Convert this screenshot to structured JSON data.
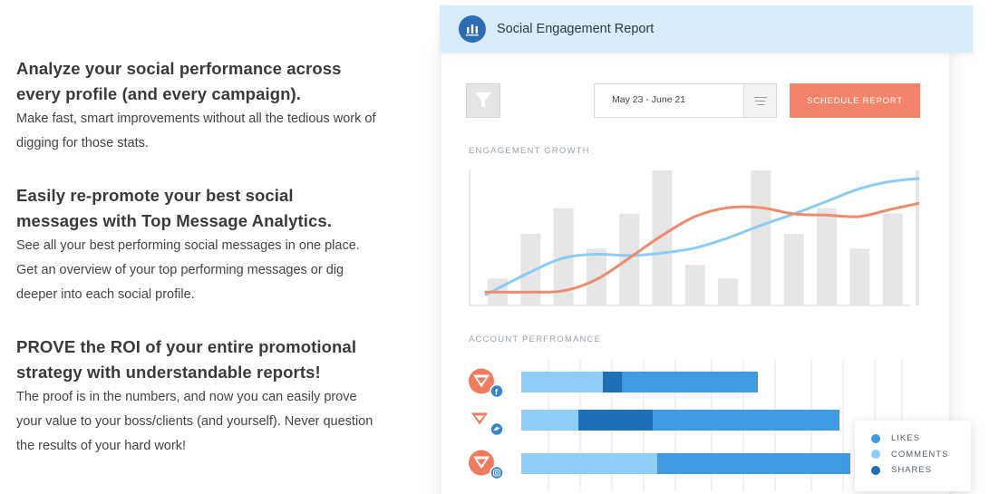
{
  "features": [
    {
      "heading": "Analyze your social performance across every profile (and every campaign).",
      "body": "Make fast, smart improvements without all the tedious work of digging for those stats."
    },
    {
      "heading": "Easily re-promote your best social messages with Top Message Analytics.",
      "body": "See all your best performing social messages in one place. Get an overview of your top performing messages or dig deeper into each social profile."
    },
    {
      "heading": "PROVE the ROI of your entire promotional strategy with understandable reports!",
      "body": "The proof is in the numbers, and now you can easily prove your value to your boss/clients (and yourself). Never question the results of your hard work!"
    }
  ],
  "report": {
    "title": "Social Engagement Report",
    "date_range": "May 23 - June 21",
    "schedule_label": "SCHEDULE REPORT",
    "growth_label": "ENGAGEMENT GROWTH",
    "account_label": "ACCOUNT PERFROMANCE",
    "icons": {
      "header": "bar-chart-icon",
      "filter": "funnel-icon",
      "menu": "list-icon"
    }
  },
  "legend": [
    {
      "label": "LIKES",
      "color": "#3f9be0"
    },
    {
      "label": "COMMENTS",
      "color": "#8fcdf7"
    },
    {
      "label": "SHARES",
      "color": "#1f6fb5"
    }
  ],
  "colors": {
    "bars": "#e6e6e6",
    "line_blue": "#8ecbf2",
    "line_orange": "#ec8c6f",
    "brand_orange": "#f4836b"
  },
  "chart_data": [
    {
      "type": "bar",
      "title": "ENGAGEMENT GROWTH",
      "bar_values": [
        0.2,
        0.53,
        0.72,
        0.42,
        0.68,
        1.0,
        0.3,
        0.2,
        1.0,
        0.53,
        0.72,
        0.42,
        0.68,
        1.0
      ],
      "lines": [
        {
          "color": "#8ecbf2",
          "values": [
            0.0,
            0.18,
            0.29,
            0.32,
            0.31,
            0.33,
            0.37,
            0.45,
            0.55,
            0.64,
            0.74,
            0.84,
            0.9,
            0.93
          ]
        },
        {
          "color": "#ec8c6f",
          "values": [
            0.02,
            0.02,
            0.03,
            0.12,
            0.29,
            0.47,
            0.62,
            0.69,
            0.69,
            0.64,
            0.63,
            0.62,
            0.68,
            0.75
          ]
        }
      ]
    },
    {
      "type": "bar",
      "title": "ACCOUNT PERFROMANCE",
      "categories": [
        "facebook",
        "twitter",
        "instagram"
      ],
      "series": [
        {
          "name": "COMMENTS",
          "values": [
            90,
            63,
            150
          ]
        },
        {
          "name": "SHARES",
          "values": [
            21,
            82,
            0
          ]
        },
        {
          "name": "LIKES",
          "values": [
            150,
            206,
            213
          ]
        }
      ]
    }
  ]
}
